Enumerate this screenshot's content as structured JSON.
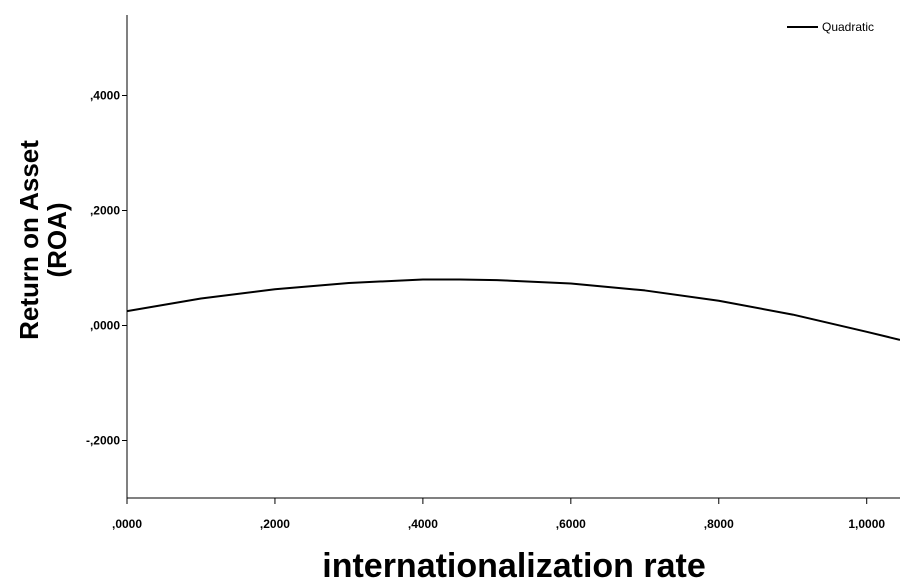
{
  "chart_data": {
    "type": "line",
    "title": "",
    "xlabel": "internationalization rate",
    "ylabel": "Return on Asset (ROA)",
    "ylabel_lines": [
      "Return on Asset",
      "(ROA)"
    ],
    "xlim": [
      0,
      1.045
    ],
    "ylim": [
      -0.3,
      0.54
    ],
    "x_ticks": [
      0,
      0.2,
      0.4,
      0.6,
      0.8,
      1.0
    ],
    "x_tick_labels": [
      ",0000",
      ",2000",
      ",4000",
      ",6000",
      ",8000",
      "1,0000"
    ],
    "y_ticks": [
      -0.2,
      0,
      0.2,
      0.4
    ],
    "y_tick_labels": [
      "-,2000",
      ",0000",
      ",2000",
      ",4000"
    ],
    "grid": false,
    "legend_position": "top-right",
    "series": [
      {
        "name": "Quadratic",
        "color": "#000000",
        "x": [
          0,
          0.1,
          0.2,
          0.3,
          0.4,
          0.45,
          0.5,
          0.6,
          0.7,
          0.8,
          0.9,
          1.0,
          1.045
        ],
        "y": [
          0.025,
          0.047,
          0.063,
          0.074,
          0.08,
          0.08,
          0.079,
          0.073,
          0.061,
          0.043,
          0.019,
          -0.011,
          -0.025
        ]
      }
    ]
  }
}
